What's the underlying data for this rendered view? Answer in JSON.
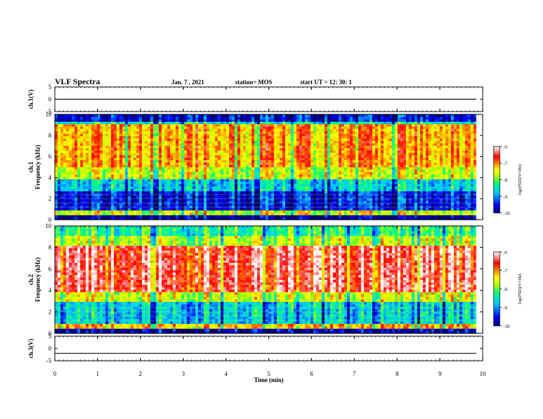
{
  "header": {
    "title": "VLF Spectra",
    "date": "Jan. 7 , 2021",
    "station": "station= MOS",
    "start": "start  UT  =   12: 30: 1"
  },
  "chart_data": [
    {
      "type": "line",
      "panel": "ch1-waveform",
      "ylabel": "ch.1(V)",
      "yticks": [
        "5",
        "0",
        "-5"
      ],
      "ylim": [
        -5,
        5
      ],
      "xlim": [
        0,
        10
      ],
      "series": [
        {
          "x": [
            0,
            9.85
          ],
          "values": [
            0,
            0
          ]
        }
      ]
    },
    {
      "type": "heatmap",
      "panel": "ch1-spectrogram",
      "ylabel": "ch.1\nFrequency (kHz)",
      "yticks": [
        "0",
        "2",
        "4",
        "6",
        "8",
        "10"
      ],
      "ylim": [
        0,
        10
      ],
      "xlim": [
        0,
        10
      ],
      "data_xlim": [
        0,
        9.85
      ],
      "colorbar": {
        "label": "log(PSD)(V²/Hz)",
        "ticks": [
          "-6",
          "-7",
          "-8",
          "-9",
          "-10"
        ],
        "range": [
          -10,
          -6
        ]
      }
    },
    {
      "type": "heatmap",
      "panel": "ch2-spectrogram",
      "ylabel": "ch.2\nFrequency (kHz)",
      "yticks": [
        "0",
        "2",
        "4",
        "6",
        "8",
        "10"
      ],
      "ylim": [
        0,
        10
      ],
      "xlim": [
        0,
        10
      ],
      "data_xlim": [
        0,
        9.85
      ],
      "colorbar": {
        "label": "log(PSD)(V²/Hz)",
        "ticks": [
          "-6",
          "-7",
          "-8",
          "-9",
          "-10"
        ],
        "range": [
          -10,
          -6
        ]
      }
    },
    {
      "type": "line",
      "panel": "ch3-waveform",
      "ylabel": "ch.3(V)",
      "yticks": [
        "5",
        "0",
        "-5"
      ],
      "ylim": [
        -5,
        5
      ],
      "xlim": [
        0,
        10
      ],
      "series": [
        {
          "x": [
            0,
            9.85
          ],
          "values": [
            -2,
            -2
          ]
        }
      ]
    }
  ],
  "xaxis": {
    "label": "Time  (min)",
    "ticks": [
      "0",
      "1",
      "2",
      "3",
      "4",
      "5",
      "6",
      "7",
      "8",
      "9",
      "10"
    ]
  }
}
